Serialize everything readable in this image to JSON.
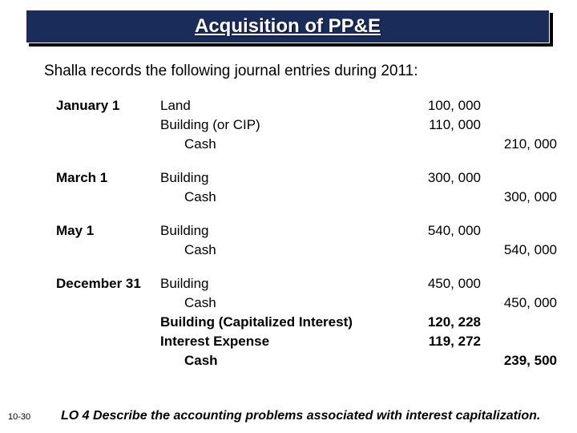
{
  "title": "Acquisition of PP&E",
  "intro": "Shalla records the following journal entries during 2011:",
  "entries": [
    {
      "date": "January 1",
      "lines": [
        {
          "account": "Land",
          "indent": false,
          "debit": "100, 000",
          "credit": ""
        },
        {
          "account": "Building (or CIP)",
          "indent": false,
          "debit": "110, 000",
          "credit": ""
        },
        {
          "account": "Cash",
          "indent": true,
          "debit": "",
          "credit": "210, 000"
        }
      ]
    },
    {
      "date": "March 1",
      "lines": [
        {
          "account": "Building",
          "indent": false,
          "debit": "300, 000",
          "credit": ""
        },
        {
          "account": "Cash",
          "indent": true,
          "debit": "",
          "credit": "300, 000"
        }
      ]
    },
    {
      "date": "May 1",
      "lines": [
        {
          "account": "Building",
          "indent": false,
          "debit": "540, 000",
          "credit": ""
        },
        {
          "account": "Cash",
          "indent": true,
          "debit": "",
          "credit": "540, 000"
        }
      ]
    },
    {
      "date": "December 31",
      "lines": [
        {
          "account": "Building",
          "indent": false,
          "debit": "450, 000",
          "credit": ""
        },
        {
          "account": "Cash",
          "indent": true,
          "debit": "",
          "credit": "450, 000"
        },
        {
          "account": "Building (Capitalized Interest)",
          "indent": false,
          "bold": true,
          "debit": "120, 228",
          "credit": ""
        },
        {
          "account": "Interest Expense",
          "indent": false,
          "bold": true,
          "debit": "119, 272",
          "credit": ""
        },
        {
          "account": "Cash",
          "indent": true,
          "bold": true,
          "debit": "",
          "credit": "239, 500"
        }
      ]
    }
  ],
  "footer_page": "10-30",
  "footer_lo": "LO 4  Describe the accounting problems associated with interest capitalization.",
  "colors": {
    "title_bg": "#1a2c5a",
    "title_text": "#ffffff",
    "body_text": "#000000",
    "background": "#ffffff"
  },
  "typography": {
    "title_fontsize": 24,
    "intro_fontsize": 19,
    "entry_fontsize": 17,
    "footer_lo_fontsize": 16,
    "footer_page_fontsize": 11
  }
}
